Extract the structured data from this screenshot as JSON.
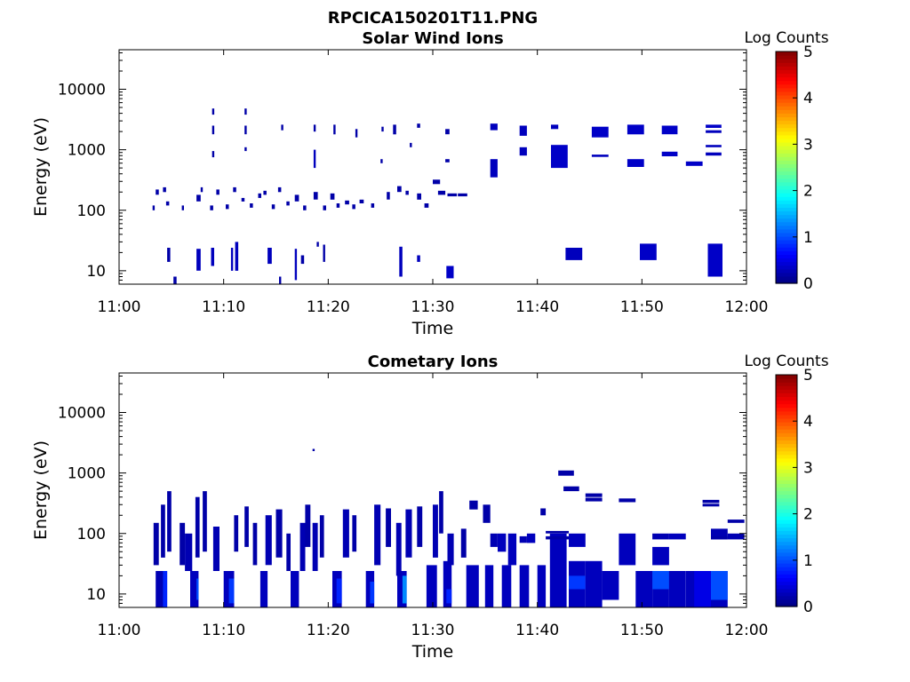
{
  "figure": {
    "title": "RPCICA150201T11.PNG"
  },
  "chart_data": [
    {
      "type": "heatmap",
      "title": "Solar Wind Ions",
      "xlabel": "Time",
      "ylabel": "Energy (eV)",
      "y_scale": "log",
      "xlim": [
        "11:00",
        "12:00"
      ],
      "ylim": [
        6,
        45000
      ],
      "xticks": [
        "11:00",
        "11:10",
        "11:20",
        "11:30",
        "11:40",
        "11:50",
        "12:00"
      ],
      "yticks": [
        "10",
        "100",
        "1000",
        "10000"
      ],
      "colorbar": {
        "label": "Log Counts",
        "range": [
          0,
          5
        ],
        "ticks": [
          "0",
          "1",
          "2",
          "3",
          "4",
          "5"
        ],
        "colormap": "jet"
      },
      "cells": [
        [
          4.6,
          4.9,
          14,
          24,
          0.2
        ],
        [
          5.2,
          5.5,
          6,
          8,
          0.2
        ],
        [
          7.4,
          7.8,
          10,
          23,
          0.3
        ],
        [
          8.8,
          9.1,
          12,
          24,
          0.3
        ],
        [
          10.7,
          10.9,
          10,
          24,
          0.3
        ],
        [
          11.1,
          11.4,
          10,
          30,
          0.3
        ],
        [
          14.2,
          14.6,
          13,
          24,
          0.3
        ],
        [
          15.3,
          15.5,
          6,
          8,
          0.2
        ],
        [
          16.8,
          17.0,
          7,
          23,
          0.3
        ],
        [
          17.4,
          17.7,
          13,
          18,
          0.2
        ],
        [
          18.9,
          19.1,
          25,
          30,
          0.2
        ],
        [
          19.5,
          19.7,
          14,
          27,
          0.2
        ],
        [
          26.8,
          27.1,
          8,
          25,
          0.3
        ],
        [
          28.5,
          28.8,
          14,
          18,
          0.3
        ],
        [
          31.3,
          32.0,
          7.5,
          12,
          0.35
        ],
        [
          42.7,
          44.3,
          15,
          24,
          0.3
        ],
        [
          49.8,
          51.4,
          15,
          28,
          0.35
        ],
        [
          56.3,
          57.7,
          8,
          28,
          0.35
        ],
        [
          3.2,
          3.4,
          100,
          120,
          0.2
        ],
        [
          3.5,
          3.8,
          180,
          220,
          0.2
        ],
        [
          4.2,
          4.5,
          200,
          240,
          0.2
        ],
        [
          4.5,
          4.8,
          120,
          140,
          0.2
        ],
        [
          6.0,
          6.2,
          100,
          120,
          0.2
        ],
        [
          7.4,
          7.8,
          140,
          180,
          0.2
        ],
        [
          7.8,
          8.0,
          200,
          240,
          0.2
        ],
        [
          8.7,
          9.0,
          100,
          120,
          0.2
        ],
        [
          9.3,
          9.6,
          180,
          220,
          0.2
        ],
        [
          10.2,
          10.5,
          105,
          125,
          0.2
        ],
        [
          10.9,
          11.2,
          200,
          240,
          0.2
        ],
        [
          11.7,
          12.0,
          140,
          160,
          0.2
        ],
        [
          12.5,
          12.8,
          110,
          130,
          0.2
        ],
        [
          13.3,
          13.6,
          160,
          190,
          0.2
        ],
        [
          13.8,
          14.1,
          180,
          210,
          0.2
        ],
        [
          14.6,
          14.9,
          105,
          125,
          0.2
        ],
        [
          15.2,
          15.5,
          200,
          240,
          0.2
        ],
        [
          16.0,
          16.3,
          120,
          140,
          0.2
        ],
        [
          16.8,
          17.2,
          140,
          180,
          0.2
        ],
        [
          17.6,
          17.9,
          100,
          120,
          0.2
        ],
        [
          18.6,
          19.0,
          150,
          200,
          0.2
        ],
        [
          19.5,
          19.8,
          100,
          120,
          0.2
        ],
        [
          20.2,
          20.6,
          150,
          190,
          0.2
        ],
        [
          20.8,
          21.1,
          110,
          130,
          0.2
        ],
        [
          21.6,
          22.0,
          125,
          145,
          0.2
        ],
        [
          22.3,
          22.6,
          105,
          125,
          0.2
        ],
        [
          23.0,
          23.4,
          130,
          150,
          0.2
        ],
        [
          24.1,
          24.4,
          110,
          130,
          0.2
        ],
        [
          25.6,
          25.9,
          150,
          200,
          0.2
        ],
        [
          26.6,
          27.0,
          200,
          250,
          0.2
        ],
        [
          27.4,
          27.7,
          180,
          210,
          0.2
        ],
        [
          28.5,
          28.9,
          150,
          190,
          0.2
        ],
        [
          29.2,
          29.6,
          110,
          130,
          0.2
        ],
        [
          30.0,
          30.7,
          270,
          320,
          0.2
        ],
        [
          30.5,
          31.2,
          180,
          210,
          0.2
        ],
        [
          31.4,
          32.3,
          170,
          190,
          0.2
        ],
        [
          32.4,
          33.3,
          170,
          190,
          0.2
        ],
        [
          8.9,
          9.1,
          3800,
          4800,
          0.2
        ],
        [
          8.9,
          9.1,
          1800,
          2500,
          0.2
        ],
        [
          8.9,
          9.1,
          750,
          950,
          0.2
        ],
        [
          12.0,
          12.2,
          3800,
          4800,
          0.2
        ],
        [
          12.0,
          12.2,
          1800,
          2500,
          0.2
        ],
        [
          12.0,
          12.2,
          950,
          1100,
          0.2
        ],
        [
          15.5,
          15.7,
          2100,
          2600,
          0.2
        ],
        [
          18.6,
          18.8,
          2000,
          2600,
          0.2
        ],
        [
          18.6,
          18.8,
          500,
          1000,
          0.3
        ],
        [
          20.5,
          20.7,
          1800,
          2600,
          0.2
        ],
        [
          22.6,
          22.8,
          1600,
          2200,
          0.2
        ],
        [
          25.0,
          25.2,
          600,
          700,
          0.2
        ],
        [
          25.1,
          25.3,
          2000,
          2400,
          0.2
        ],
        [
          26.2,
          26.5,
          1800,
          2600,
          0.2
        ],
        [
          27.8,
          28.0,
          1100,
          1300,
          0.2
        ],
        [
          28.5,
          28.8,
          2300,
          2700,
          0.2
        ],
        [
          31.2,
          31.6,
          1800,
          2200,
          0.2
        ],
        [
          31.2,
          31.6,
          620,
          700,
          0.2
        ],
        [
          35.5,
          36.2,
          2100,
          2700,
          0.3
        ],
        [
          35.5,
          36.2,
          350,
          700,
          0.3
        ],
        [
          38.3,
          39.0,
          1700,
          2500,
          0.3
        ],
        [
          38.3,
          39.0,
          800,
          1100,
          0.3
        ],
        [
          41.3,
          42.0,
          2200,
          2600,
          0.3
        ],
        [
          41.3,
          42.9,
          500,
          1200,
          0.35
        ],
        [
          45.2,
          46.8,
          1600,
          2400,
          0.35
        ],
        [
          45.2,
          46.8,
          760,
          830,
          0.3
        ],
        [
          48.6,
          50.2,
          1800,
          2600,
          0.35
        ],
        [
          48.6,
          50.2,
          520,
          700,
          0.35
        ],
        [
          51.9,
          53.4,
          1800,
          2500,
          0.35
        ],
        [
          51.9,
          53.4,
          780,
          930,
          0.35
        ],
        [
          54.2,
          55.8,
          540,
          640,
          0.35
        ],
        [
          56.1,
          57.6,
          2300,
          2600,
          0.35
        ],
        [
          56.1,
          57.6,
          1900,
          2100,
          0.3
        ],
        [
          56.1,
          57.6,
          800,
          900,
          0.3
        ],
        [
          56.1,
          57.6,
          1100,
          1200,
          0.3
        ]
      ]
    },
    {
      "type": "heatmap",
      "title": "Cometary Ions",
      "xlabel": "Time",
      "ylabel": "Energy (eV)",
      "y_scale": "log",
      "xlim": [
        "11:00",
        "12:00"
      ],
      "ylim": [
        6,
        45000
      ],
      "xticks": [
        "11:00",
        "11:10",
        "11:20",
        "11:30",
        "11:40",
        "11:50",
        "12:00"
      ],
      "yticks": [
        "10",
        "100",
        "1000",
        "10000"
      ],
      "colorbar": {
        "label": "Log Counts",
        "range": [
          0,
          5
        ],
        "ticks": [
          "0",
          "1",
          "2",
          "3",
          "4",
          "5"
        ],
        "colormap": "jet"
      },
      "cells": [
        [
          18.5,
          18.7,
          2300,
          2500,
          0.2
        ],
        [
          3.5,
          4.6,
          6,
          24,
          0.25
        ],
        [
          4.2,
          4.6,
          6,
          24,
          0.8
        ],
        [
          6.8,
          7.6,
          6,
          24,
          0.3
        ],
        [
          7.4,
          7.6,
          8,
          18,
          1.0
        ],
        [
          10.0,
          11.0,
          6,
          24,
          0.3
        ],
        [
          10.5,
          11.0,
          7,
          18,
          0.9
        ],
        [
          13.5,
          14.2,
          6,
          24,
          0.3
        ],
        [
          16.4,
          17.2,
          6,
          24,
          0.3
        ],
        [
          20.4,
          21.3,
          6,
          24,
          0.3
        ],
        [
          20.8,
          21.3,
          7,
          18,
          0.8
        ],
        [
          23.6,
          24.4,
          6,
          24,
          0.3
        ],
        [
          24.0,
          24.4,
          7,
          16,
          0.9
        ],
        [
          26.6,
          27.5,
          6,
          24,
          0.3
        ],
        [
          27.1,
          27.5,
          7,
          20,
          1.3
        ],
        [
          29.4,
          30.4,
          6,
          30,
          0.3
        ],
        [
          31.0,
          31.8,
          6,
          35,
          0.3
        ],
        [
          31.3,
          31.8,
          7,
          12,
          0.8
        ],
        [
          33.2,
          34.4,
          6,
          30,
          0.3
        ],
        [
          35.0,
          35.8,
          6,
          30,
          0.3
        ],
        [
          36.6,
          37.5,
          6,
          30,
          0.3
        ],
        [
          38.3,
          39.2,
          6,
          30,
          0.3
        ],
        [
          40.0,
          40.8,
          6,
          30,
          0.3
        ],
        [
          41.2,
          42.8,
          6,
          100,
          0.3
        ],
        [
          43.0,
          44.6,
          6,
          35,
          0.3
        ],
        [
          43.0,
          44.6,
          12,
          20,
          0.9
        ],
        [
          44.6,
          46.2,
          6,
          35,
          0.3
        ],
        [
          46.2,
          47.8,
          8,
          24,
          0.3
        ],
        [
          49.4,
          51.0,
          6,
          24,
          0.3
        ],
        [
          51.0,
          52.6,
          6,
          24,
          0.3
        ],
        [
          51.0,
          52.6,
          12,
          24,
          1.0
        ],
        [
          52.6,
          54.2,
          6,
          24,
          0.3
        ],
        [
          54.2,
          55.8,
          6,
          24,
          0.3
        ],
        [
          55.0,
          56.6,
          6,
          24,
          0.5
        ],
        [
          56.6,
          58.2,
          6,
          24,
          0.3
        ],
        [
          56.6,
          58.2,
          8,
          24,
          1.0
        ],
        [
          3.3,
          3.8,
          30,
          150,
          0.2
        ],
        [
          4.0,
          4.4,
          40,
          300,
          0.2
        ],
        [
          4.6,
          5.0,
          50,
          500,
          0.2
        ],
        [
          5.8,
          6.3,
          30,
          150,
          0.2
        ],
        [
          6.3,
          7.0,
          24,
          100,
          0.25
        ],
        [
          7.3,
          7.7,
          40,
          400,
          0.2
        ],
        [
          8.0,
          8.4,
          50,
          500,
          0.2
        ],
        [
          9.0,
          9.6,
          24,
          130,
          0.25
        ],
        [
          11.0,
          11.4,
          50,
          200,
          0.2
        ],
        [
          12.0,
          12.4,
          60,
          280,
          0.2
        ],
        [
          12.8,
          13.2,
          30,
          150,
          0.2
        ],
        [
          14.0,
          14.6,
          30,
          200,
          0.25
        ],
        [
          15.0,
          15.6,
          40,
          250,
          0.2
        ],
        [
          16.0,
          16.4,
          24,
          100,
          0.2
        ],
        [
          17.3,
          17.8,
          24,
          150,
          0.25
        ],
        [
          17.8,
          18.3,
          60,
          300,
          0.2
        ],
        [
          18.5,
          19.0,
          24,
          150,
          0.25
        ],
        [
          19.2,
          19.6,
          40,
          200,
          0.2
        ],
        [
          21.4,
          22.0,
          40,
          250,
          0.25
        ],
        [
          22.3,
          22.7,
          50,
          200,
          0.2
        ],
        [
          24.4,
          25.0,
          30,
          300,
          0.25
        ],
        [
          25.5,
          26.0,
          60,
          260,
          0.2
        ],
        [
          26.5,
          27.0,
          20,
          150,
          0.25
        ],
        [
          27.4,
          28.0,
          40,
          250,
          0.25
        ],
        [
          28.5,
          29.0,
          60,
          280,
          0.2
        ],
        [
          30.0,
          30.5,
          40,
          300,
          0.25
        ],
        [
          30.6,
          31.0,
          100,
          500,
          0.2
        ],
        [
          31.4,
          32.0,
          30,
          100,
          0.25
        ],
        [
          32.7,
          33.2,
          40,
          120,
          0.2
        ],
        [
          33.5,
          34.3,
          250,
          350,
          0.2
        ],
        [
          34.8,
          35.5,
          150,
          300,
          0.2
        ],
        [
          35.5,
          36.2,
          60,
          100,
          0.25
        ],
        [
          36.2,
          37.0,
          50,
          100,
          0.3
        ],
        [
          37.2,
          38.0,
          30,
          100,
          0.3
        ],
        [
          38.3,
          39.0,
          70,
          90,
          0.25
        ],
        [
          39.0,
          39.8,
          70,
          100,
          0.3
        ],
        [
          40.3,
          40.8,
          200,
          260,
          0.2
        ],
        [
          40.8,
          43.0,
          80,
          90,
          0.2
        ],
        [
          40.8,
          43.0,
          100,
          110,
          0.2
        ],
        [
          42.0,
          43.5,
          900,
          1100,
          0.2
        ],
        [
          42.5,
          44.0,
          500,
          600,
          0.2
        ],
        [
          43.0,
          44.6,
          60,
          100,
          0.3
        ],
        [
          44.6,
          46.2,
          400,
          460,
          0.2
        ],
        [
          44.6,
          46.2,
          340,
          390,
          0.2
        ],
        [
          47.8,
          49.4,
          330,
          380,
          0.2
        ],
        [
          47.8,
          49.4,
          30,
          100,
          0.3
        ],
        [
          51.0,
          52.6,
          80,
          100,
          0.25
        ],
        [
          51.0,
          52.6,
          30,
          60,
          0.3
        ],
        [
          52.6,
          54.2,
          80,
          100,
          0.3
        ],
        [
          55.8,
          57.4,
          320,
          360,
          0.2
        ],
        [
          55.8,
          57.4,
          280,
          310,
          0.2
        ],
        [
          56.6,
          58.2,
          80,
          120,
          0.25
        ],
        [
          56.6,
          58.2,
          80,
          90,
          0.2
        ],
        [
          58.2,
          59.8,
          150,
          170,
          0.2
        ],
        [
          58.2,
          59.8,
          80,
          100,
          0.25
        ]
      ]
    }
  ]
}
